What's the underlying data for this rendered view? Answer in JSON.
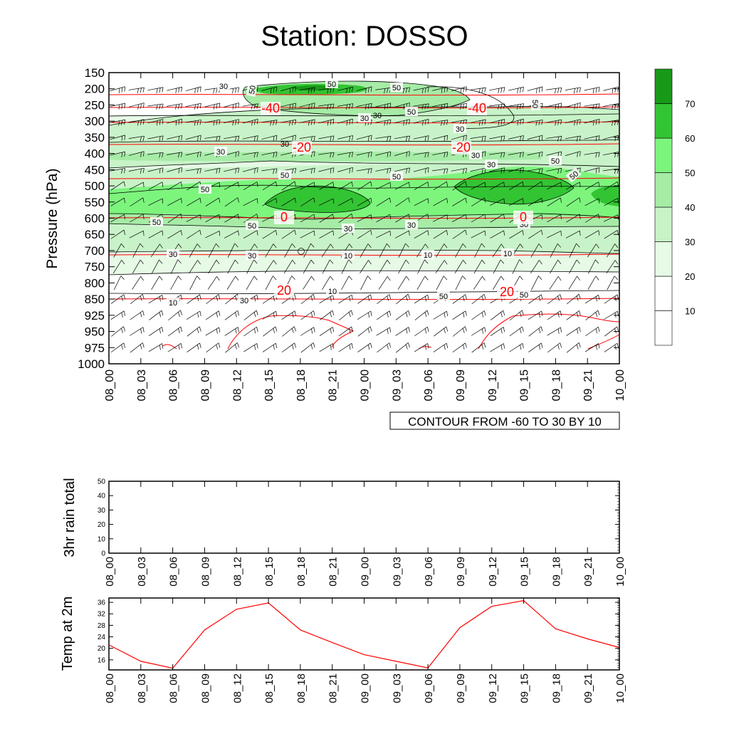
{
  "title": "Station: DOSSO",
  "contour_note": "CONTOUR FROM -60 TO 30 BY 10",
  "time_labels": [
    "08_00",
    "08_03",
    "08_06",
    "08_09",
    "08_12",
    "08_15",
    "08_18",
    "08_21",
    "09_00",
    "09_03",
    "09_06",
    "09_09",
    "09_12",
    "09_15",
    "09_18",
    "09_21",
    "10_00"
  ],
  "chart_data": [
    {
      "type": "heatmap",
      "ylabel": "Pressure (hPa)",
      "pressure_levels": [
        150,
        200,
        250,
        300,
        350,
        400,
        450,
        500,
        550,
        600,
        650,
        700,
        750,
        800,
        850,
        925,
        950,
        975,
        1000
      ],
      "colorbar": {
        "levels": [
          10,
          20,
          30,
          40,
          50,
          60,
          70
        ],
        "colors": [
          "#ffffff",
          "#ffffff",
          "#e6fae6",
          "#c8f3c8",
          "#a6eba6",
          "#7df57d",
          "#33c433",
          "#189a18"
        ]
      },
      "humidity_contour_labels": [
        30,
        50,
        50,
        50,
        50,
        50,
        30,
        30,
        30,
        30,
        30,
        50,
        50,
        50,
        50,
        50,
        50,
        50,
        30,
        30,
        30,
        30,
        30,
        10,
        10,
        10,
        10,
        10
      ],
      "temperature_isotherms": [
        {
          "label": "-40",
          "pressure": 260
        },
        {
          "label": "-20",
          "pressure": 385
        },
        {
          "label": "0",
          "pressure": 600
        },
        {
          "label": "20",
          "pressure": 830
        }
      ],
      "extra_contour_labels": [
        "30",
        "30"
      ]
    },
    {
      "type": "line",
      "ylabel": "3hr rain total",
      "ylim": [
        0,
        50
      ],
      "y_ticks": [
        "0",
        "10",
        "20",
        "30",
        "40",
        "50"
      ],
      "values": [
        0,
        0,
        0,
        0,
        0,
        0,
        0,
        0,
        0,
        0,
        0,
        0,
        0,
        0,
        0,
        0,
        0
      ]
    },
    {
      "type": "line",
      "ylabel": "Temp at 2m",
      "ylim": [
        12.5,
        37.5
      ],
      "y_ticks": [
        "16",
        "20",
        "24",
        "28",
        "32",
        "36"
      ],
      "values": [
        21.2,
        15.5,
        13.1,
        26.4,
        33.6,
        35.8,
        26.4,
        22.0,
        17.8,
        15.5,
        13.2,
        27.2,
        34.6,
        36.6,
        26.8,
        23.3,
        20.3
      ],
      "line_color": "#ff0000"
    }
  ]
}
